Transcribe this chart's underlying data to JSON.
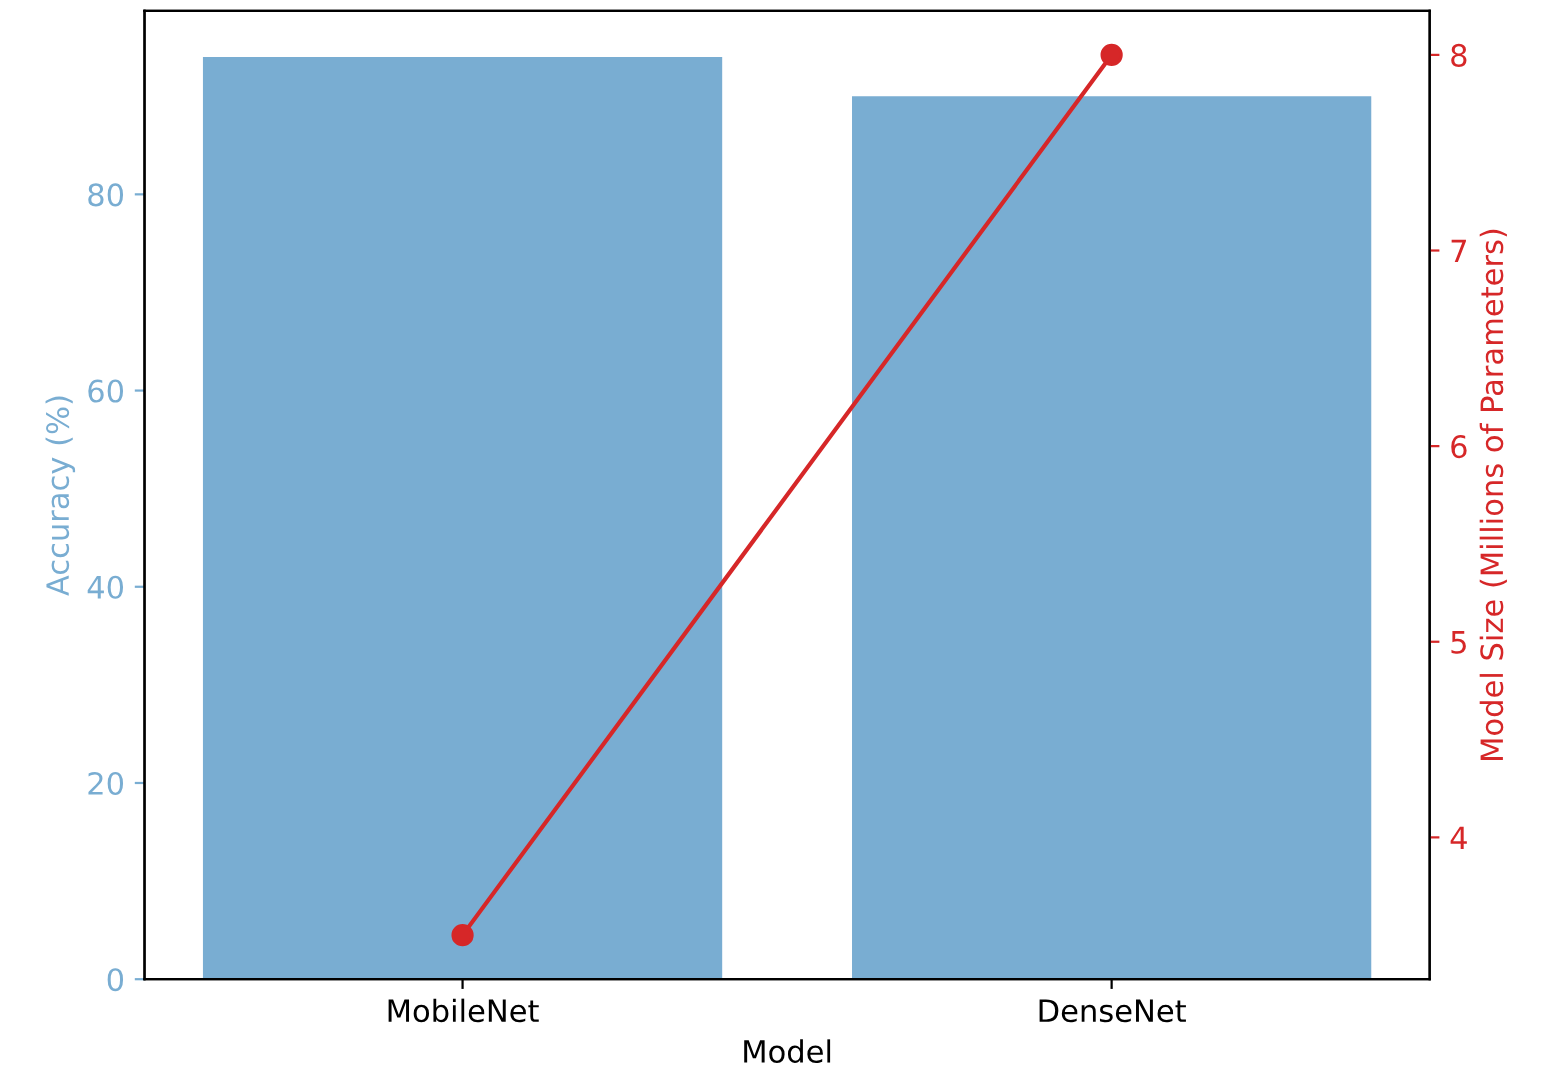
{
  "chart_data": {
    "type": "bar",
    "xlabel": "Model",
    "ylabel": "Accuracy (%)",
    "y2label": "Model Size (Millions of Parameters)",
    "categories": [
      "MobileNet",
      "DenseNet"
    ],
    "series": [
      {
        "color": "#79add2",
        "values": [
          94,
          90
        ]
      },
      {
        "type": "line",
        "axis": "y2",
        "color": "#d62728",
        "values": [
          3.5,
          8
        ],
        "marker": "circle"
      }
    ],
    "ylim": [
      0,
      98.7
    ],
    "yticks": [
      0,
      20,
      40,
      60,
      80
    ],
    "y2lim": [
      3.275,
      8.225
    ],
    "y2ticks": [
      4,
      5,
      6,
      7,
      8
    ],
    "grid": false,
    "legend": false
  }
}
